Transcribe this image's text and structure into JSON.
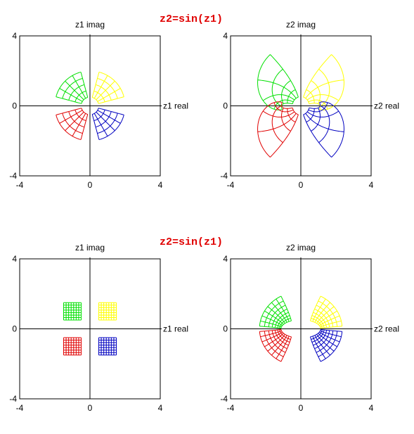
{
  "titles": [
    "z2=sin(z1)",
    "z2=sin(z1)"
  ],
  "panels": [
    {
      "id": "top-left",
      "xlabel": "z1 real",
      "ylabel": "z1 imag",
      "kind": "domain-sectors"
    },
    {
      "id": "top-right",
      "xlabel": "z2 real",
      "ylabel": "z2 imag",
      "kind": "image-sectors"
    },
    {
      "id": "bottom-left",
      "xlabel": "z1 real",
      "ylabel": "z1 imag",
      "kind": "domain-squares"
    },
    {
      "id": "bottom-right",
      "xlabel": "z2 real",
      "ylabel": "z2 imag",
      "kind": "image-squares"
    }
  ],
  "ticks": {
    "xmin": "-4",
    "xmid": "0",
    "xmax": "4",
    "ymax": "4",
    "ymid": "0",
    "ymin": "-4"
  },
  "range": {
    "min": -4,
    "max": 4
  },
  "colors": {
    "q1": "#ffff00",
    "q2": "#00e000",
    "q3": "#e00000",
    "q4": "#0000c0",
    "title": "#e00000",
    "axis": "#000000"
  },
  "grid": {
    "sectors": {
      "r_min": 0.5,
      "r_max": 2,
      "angle_span_deg": [
        15,
        75
      ],
      "quadrant_offsets_deg": [
        0,
        90,
        180,
        270
      ],
      "divisions": 4
    },
    "squares": {
      "inner": 0.5,
      "outer": 1.5,
      "divisions": 7
    }
  }
}
